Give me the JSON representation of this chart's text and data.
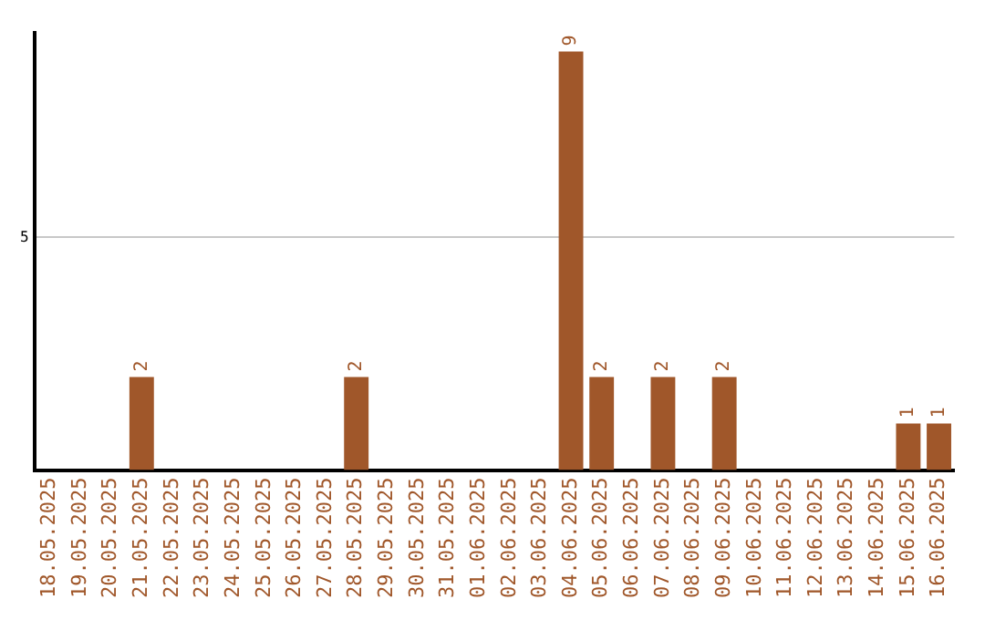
{
  "chart_data": {
    "type": "bar",
    "categories": [
      "18.05.2025",
      "19.05.2025",
      "20.05.2025",
      "21.05.2025",
      "22.05.2025",
      "23.05.2025",
      "24.05.2025",
      "25.05.2025",
      "26.05.2025",
      "27.05.2025",
      "28.05.2025",
      "29.05.2025",
      "30.05.2025",
      "31.05.2025",
      "01.06.2025",
      "02.06.2025",
      "03.06.2025",
      "04.06.2025",
      "05.06.2025",
      "06.06.2025",
      "07.06.2025",
      "08.06.2025",
      "09.06.2025",
      "10.06.2025",
      "11.06.2025",
      "12.06.2025",
      "13.06.2025",
      "14.06.2025",
      "15.06.2025",
      "16.06.2025"
    ],
    "values": [
      0,
      0,
      0,
      2,
      0,
      0,
      0,
      0,
      0,
      0,
      2,
      0,
      0,
      0,
      0,
      0,
      0,
      9,
      2,
      0,
      2,
      0,
      2,
      0,
      0,
      0,
      0,
      0,
      1,
      1
    ],
    "value_labels": [
      null,
      null,
      null,
      "2",
      null,
      null,
      null,
      null,
      null,
      null,
      "2",
      null,
      null,
      null,
      null,
      null,
      null,
      "9",
      "2",
      null,
      "2",
      null,
      "2",
      null,
      null,
      null,
      null,
      null,
      "1",
      "1"
    ],
    "color": "#a0572a",
    "ylim": [
      0,
      9.4
    ],
    "yticks": [
      5
    ],
    "grid": "y",
    "legend": false
  }
}
